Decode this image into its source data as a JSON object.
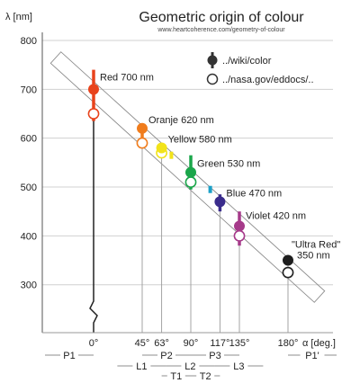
{
  "chart_data": {
    "type": "scatter",
    "title": "Geometric origin of colour",
    "subtitle": "www.heartcoherence.com/geometry-of-colour",
    "ylabel": "λ [nm]",
    "xlabel": "α [deg.]",
    "ylim": [
      200,
      800
    ],
    "xlim": [
      -45,
      225
    ],
    "yticks": [
      300,
      400,
      500,
      600,
      700,
      800
    ],
    "xticks": [
      {
        "value": 0,
        "label": "0°"
      },
      {
        "value": 45,
        "label": "45°"
      },
      {
        "value": 63,
        "label": "63°"
      },
      {
        "value": 90,
        "label": "90°"
      },
      {
        "value": 117,
        "label": "117°"
      },
      {
        "value": 135,
        "label": "135°"
      },
      {
        "value": 180,
        "label": "180°"
      }
    ],
    "grid": true,
    "legend": {
      "position": "top-right",
      "entries": [
        {
          "marker": "filled",
          "label": "../wiki/color"
        },
        {
          "marker": "open",
          "label": "../nasa.gov/eddocs/.."
        }
      ]
    },
    "series": [
      {
        "name": "../wiki/color",
        "points": [
          {
            "x": 0,
            "y": 700,
            "color": "#e8431c",
            "label": "Red 700 nm",
            "range": [
              635,
              740
            ]
          },
          {
            "x": 45,
            "y": 620,
            "color": "#f07c1c",
            "label": "Oranje 620 nm",
            "range": [
              590,
              625
            ]
          },
          {
            "x": 63,
            "y": 580,
            "color": "#f2e31a",
            "label": "Yellow 580 nm",
            "range": [
              565,
              590
            ]
          },
          {
            "x": 90,
            "y": 530,
            "color": "#1aa64a",
            "label": "Green 530 nm",
            "range": [
              495,
              565
            ]
          },
          {
            "x": 117,
            "y": 470,
            "color": "#3a2c8c",
            "label": "Blue 470 nm",
            "range": [
              450,
              485
            ]
          },
          {
            "x": 135,
            "y": 420,
            "color": "#a63a8a",
            "label": "Violet 420 nm",
            "range": [
              380,
              450
            ]
          },
          {
            "x": 180,
            "y": 350,
            "color": "#1e1e1e",
            "label": "\"Ultra Red\" 350 nm"
          }
        ]
      },
      {
        "name": "../nasa.gov/eddocs/..",
        "points": [
          {
            "x": 0,
            "y": 650,
            "color": "#e8431c"
          },
          {
            "x": 45,
            "y": 590,
            "color": "#f07c1c"
          },
          {
            "x": 63,
            "y": 570,
            "color": "#f2e31a"
          },
          {
            "x": 90,
            "y": 510,
            "color": "#1aa64a"
          },
          {
            "x": 135,
            "y": 400,
            "color": "#a63a8a"
          },
          {
            "x": 180,
            "y": 325,
            "color": "#1e1e1e"
          }
        ]
      }
    ],
    "small_marks": [
      {
        "x": 72,
        "y": 565,
        "color": "#f2e31a"
      },
      {
        "x": 108,
        "y": 495,
        "color": "#1aa0c8"
      }
    ],
    "segment_labels": [
      {
        "text": "P1",
        "from": -45,
        "to": 0,
        "row": 1
      },
      {
        "text": "P2",
        "from": 45,
        "to": 90,
        "row": 1
      },
      {
        "text": "P3",
        "from": 90,
        "to": 135,
        "row": 1
      },
      {
        "text": "P1'",
        "from": 180,
        "to": 225,
        "row": 1
      },
      {
        "text": "L1",
        "from": 22,
        "to": 67,
        "row": 2
      },
      {
        "text": "L2",
        "from": 67,
        "to": 112,
        "row": 2
      },
      {
        "text": "L3",
        "from": 112,
        "to": 157,
        "row": 2
      },
      {
        "text": "T1",
        "from": 63,
        "to": 90,
        "row": 3
      },
      {
        "text": "T2",
        "from": 90,
        "to": 117,
        "row": 3
      }
    ]
  }
}
